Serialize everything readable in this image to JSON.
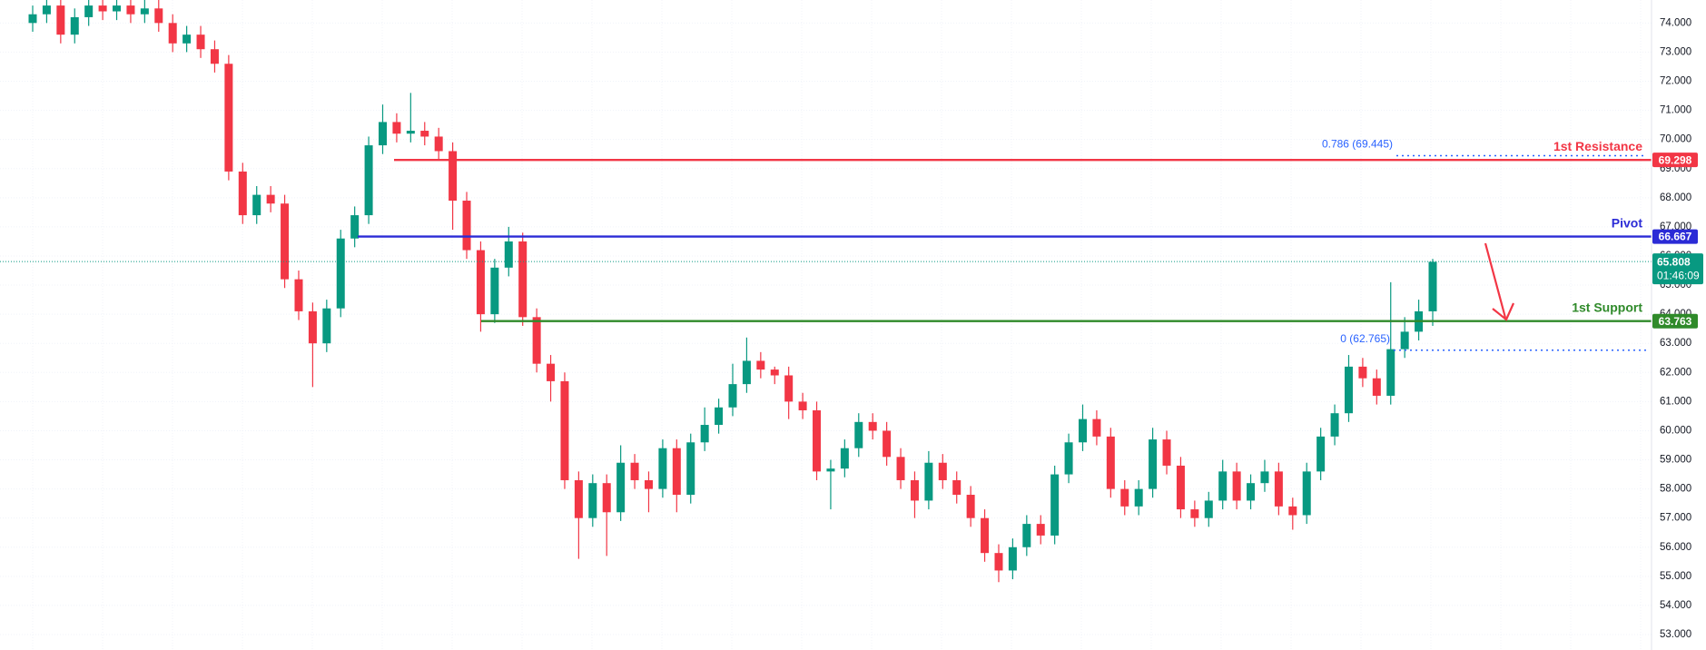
{
  "chart_data": {
    "type": "candlestick",
    "up_color": "#089981",
    "down_color": "#f23645",
    "grid": true,
    "ylim": [
      52.47,
      74.79
    ],
    "yticks": [
      {
        "value": 53,
        "label": "53.000"
      },
      {
        "value": 54,
        "label": "54.000"
      },
      {
        "value": 55,
        "label": "55.000"
      },
      {
        "value": 56,
        "label": "56.000"
      },
      {
        "value": 57,
        "label": "57.000"
      },
      {
        "value": 58,
        "label": "58.000"
      },
      {
        "value": 59,
        "label": "59.000"
      },
      {
        "value": 60,
        "label": "60.000"
      },
      {
        "value": 61,
        "label": "61.000"
      },
      {
        "value": 62,
        "label": "62.000"
      },
      {
        "value": 63,
        "label": "63.000"
      },
      {
        "value": 64,
        "label": "64.000"
      },
      {
        "value": 65,
        "label": "65.000"
      },
      {
        "value": 66,
        "label": "66.000"
      },
      {
        "value": 67,
        "label": "67.000"
      },
      {
        "value": 68,
        "label": "68.000"
      },
      {
        "value": 69,
        "label": "69.000"
      },
      {
        "value": 70,
        "label": "70.000"
      },
      {
        "value": 71,
        "label": "71.000"
      },
      {
        "value": 72,
        "label": "72.000"
      },
      {
        "value": 73,
        "label": "73.000"
      },
      {
        "value": 74,
        "label": "74.000"
      }
    ],
    "open": [
      74.0,
      74.3,
      74.6,
      73.6,
      74.2,
      74.6,
      74.4,
      74.6,
      74.3,
      74.5,
      74.0,
      73.3,
      73.6,
      73.1,
      72.6,
      68.9,
      67.4,
      68.1,
      67.8,
      65.2,
      64.1,
      63.0,
      64.2,
      66.6,
      67.4,
      69.8,
      70.6,
      70.2,
      70.3,
      70.1,
      69.6,
      67.9,
      66.2,
      64.0,
      65.6,
      66.5,
      63.9,
      62.3,
      61.7,
      58.3,
      57.0,
      58.2,
      57.2,
      58.9,
      58.3,
      58.0,
      59.4,
      57.8,
      59.6,
      60.2,
      60.8,
      61.6,
      62.4,
      62.1,
      61.9,
      61.0,
      60.7,
      58.6,
      58.7,
      59.4,
      60.3,
      60.0,
      59.1,
      58.3,
      57.6,
      58.9,
      58.3,
      57.8,
      57.0,
      55.8,
      55.2,
      56.0,
      56.8,
      56.4,
      58.5,
      59.6,
      60.4,
      59.8,
      58.0,
      57.4,
      58.0,
      59.7,
      58.8,
      57.3,
      57.0,
      57.6,
      58.6,
      57.6,
      58.2,
      58.6,
      57.4,
      57.1,
      58.6,
      59.8,
      60.6,
      62.2,
      61.8,
      61.2,
      62.8,
      63.4,
      64.1
    ],
    "high": [
      74.6,
      74.9,
      74.9,
      74.5,
      74.9,
      74.9,
      74.9,
      74.9,
      74.8,
      74.8,
      74.3,
      73.9,
      73.9,
      73.4,
      72.9,
      69.2,
      68.4,
      68.4,
      68.1,
      65.5,
      64.4,
      64.5,
      66.9,
      67.7,
      70.1,
      71.2,
      70.9,
      71.6,
      70.6,
      70.4,
      69.9,
      68.2,
      66.5,
      65.9,
      67.0,
      66.8,
      64.2,
      62.6,
      62.0,
      58.6,
      58.5,
      58.5,
      59.5,
      59.2,
      58.6,
      59.7,
      59.7,
      59.9,
      60.8,
      61.1,
      62.3,
      63.2,
      62.7,
      62.2,
      62.2,
      61.3,
      61.0,
      59.0,
      59.7,
      60.6,
      60.6,
      60.3,
      59.4,
      58.6,
      59.3,
      59.2,
      58.6,
      58.1,
      57.3,
      56.1,
      56.3,
      57.1,
      57.1,
      58.8,
      59.9,
      60.9,
      60.7,
      60.1,
      58.3,
      58.3,
      60.1,
      60.0,
      59.1,
      57.6,
      57.9,
      59.0,
      58.9,
      58.5,
      59.0,
      58.9,
      57.7,
      58.9,
      60.1,
      60.9,
      62.6,
      62.5,
      62.1,
      65.1,
      63.9,
      64.5,
      65.9
    ],
    "low": [
      73.7,
      74.0,
      73.3,
      73.3,
      73.9,
      74.1,
      74.1,
      74.0,
      74.0,
      73.7,
      73.0,
      73.0,
      72.8,
      72.3,
      68.6,
      67.1,
      67.1,
      67.5,
      64.9,
      63.8,
      61.5,
      62.7,
      63.9,
      66.3,
      67.1,
      69.5,
      69.9,
      69.9,
      69.8,
      69.3,
      66.9,
      65.9,
      63.4,
      63.7,
      65.3,
      63.6,
      62.0,
      61.0,
      58.0,
      55.6,
      56.7,
      55.7,
      56.9,
      58.0,
      57.2,
      57.7,
      57.2,
      57.5,
      59.3,
      59.9,
      60.5,
      61.3,
      61.8,
      61.6,
      60.4,
      60.4,
      58.3,
      57.3,
      58.4,
      59.1,
      59.7,
      58.8,
      58.0,
      57.0,
      57.3,
      58.0,
      57.5,
      56.7,
      55.5,
      54.8,
      54.9,
      55.7,
      56.1,
      56.1,
      58.2,
      59.3,
      59.5,
      57.7,
      57.1,
      57.1,
      57.7,
      58.5,
      57.0,
      56.7,
      56.7,
      57.3,
      57.3,
      57.3,
      57.9,
      57.1,
      56.6,
      56.8,
      58.3,
      59.5,
      60.3,
      61.5,
      60.9,
      60.9,
      62.5,
      63.1,
      63.6
    ],
    "close": [
      74.3,
      74.6,
      73.6,
      74.2,
      74.6,
      74.4,
      74.6,
      74.3,
      74.5,
      74.0,
      73.3,
      73.6,
      73.1,
      72.6,
      68.9,
      67.4,
      68.1,
      67.8,
      65.2,
      64.1,
      63.0,
      64.2,
      66.6,
      67.4,
      69.8,
      70.6,
      70.2,
      70.3,
      70.1,
      69.6,
      67.9,
      66.2,
      64.0,
      65.6,
      66.5,
      63.9,
      62.3,
      61.7,
      58.3,
      57.0,
      58.2,
      57.2,
      58.9,
      58.3,
      58.0,
      59.4,
      57.8,
      59.6,
      60.2,
      60.8,
      61.6,
      62.4,
      62.1,
      61.9,
      61.0,
      60.7,
      58.6,
      58.7,
      59.4,
      60.3,
      60.0,
      59.1,
      58.3,
      57.6,
      58.9,
      58.3,
      57.8,
      57.0,
      55.8,
      55.2,
      56.0,
      56.8,
      56.4,
      58.5,
      59.6,
      60.4,
      59.8,
      58.0,
      57.4,
      58.0,
      59.7,
      58.8,
      57.3,
      57.0,
      57.6,
      58.6,
      57.6,
      58.2,
      58.6,
      57.4,
      57.1,
      58.6,
      59.8,
      60.6,
      62.2,
      61.8,
      61.2,
      62.8,
      63.4,
      64.1,
      65.8
    ],
    "levels": [
      {
        "name": "1st Resistance",
        "value": 69.298,
        "color": "#f23645"
      },
      {
        "name": "Pivot",
        "value": 66.667,
        "color": "#2b2bd6"
      },
      {
        "name": "1st Support",
        "value": 63.763,
        "color": "#2f8a2a"
      }
    ],
    "fib_levels": [
      {
        "label": "0.786 (69.445)",
        "value": 69.445
      },
      {
        "label": "0 (62.765)",
        "value": 62.765
      }
    ],
    "fib_color": "#2962ff",
    "last_price": {
      "value": 65.808,
      "countdown": "01:46:09",
      "color": "#089981"
    }
  }
}
